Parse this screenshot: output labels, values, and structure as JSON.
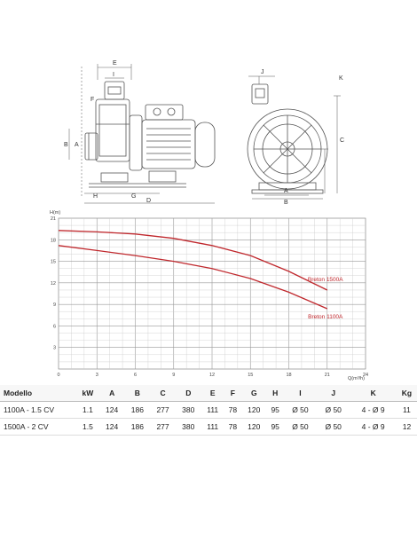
{
  "drawing_labels": {
    "side": [
      "E",
      "I",
      "F",
      "B",
      "A",
      "H",
      "G",
      "D"
    ],
    "front": [
      "J",
      "K",
      "A",
      "B",
      "C"
    ]
  },
  "chart_data": {
    "type": "line",
    "title": "",
    "ylabel": "H(m)",
    "xlabel": "Q(m³/h)",
    "xlim": [
      0,
      24
    ],
    "ylim": [
      0,
      21
    ],
    "x_ticks": [
      "0",
      "3",
      "6",
      "9",
      "12",
      "15",
      "18",
      "21",
      "24"
    ],
    "y_ticks": [
      "3",
      "6",
      "9",
      "12",
      "15",
      "18",
      "21"
    ],
    "grid": true,
    "line_color": "#c0282d",
    "series": [
      {
        "name": "Breton 1500A",
        "x": [
          0,
          3,
          6,
          9,
          12,
          15,
          18,
          21
        ],
        "y": [
          19.3,
          19.1,
          18.8,
          18.2,
          17.2,
          15.8,
          13.6,
          11.0
        ]
      },
      {
        "name": "Breton 1100A",
        "x": [
          0,
          3,
          6,
          9,
          12,
          15,
          18,
          21
        ],
        "y": [
          17.2,
          16.5,
          15.8,
          15.0,
          14.0,
          12.6,
          10.7,
          8.4
        ]
      }
    ]
  },
  "table": {
    "headers": [
      "Modello",
      "kW",
      "A",
      "B",
      "C",
      "D",
      "E",
      "F",
      "G",
      "H",
      "I",
      "J",
      "K",
      "Kg"
    ],
    "rows": [
      [
        "1100A - 1.5 CV",
        "1.1",
        "124",
        "186",
        "277",
        "380",
        "111",
        "78",
        "120",
        "95",
        "Ø 50",
        "Ø 50",
        "4 - Ø 9",
        "11"
      ],
      [
        "1500A - 2 CV",
        "1.5",
        "124",
        "186",
        "277",
        "380",
        "111",
        "78",
        "120",
        "95",
        "Ø 50",
        "Ø 50",
        "4 - Ø 9",
        "12"
      ]
    ]
  }
}
